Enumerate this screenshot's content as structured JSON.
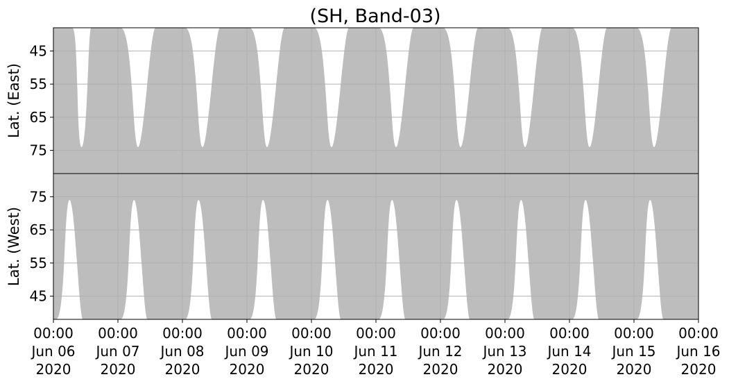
{
  "chart_data": {
    "type": "area",
    "title": "(SH, Band-03)",
    "colors": {
      "coverage": "#bdbdbd",
      "grid": "#b0b0b0",
      "background": "#ffffff",
      "axes": "#000000"
    },
    "grid": true,
    "x_axis": {
      "range": [
        "2020-06-06 00:00",
        "2020-06-16 00:00"
      ],
      "ticks": [
        {
          "time": "00:00",
          "date": "Jun 06",
          "year": "2020"
        },
        {
          "time": "00:00",
          "date": "Jun 07",
          "year": "2020"
        },
        {
          "time": "00:00",
          "date": "Jun 08",
          "year": "2020"
        },
        {
          "time": "00:00",
          "date": "Jun 09",
          "year": "2020"
        },
        {
          "time": "00:00",
          "date": "Jun 10",
          "year": "2020"
        },
        {
          "time": "00:00",
          "date": "Jun 11",
          "year": "2020"
        },
        {
          "time": "00:00",
          "date": "Jun 12",
          "year": "2020"
        },
        {
          "time": "00:00",
          "date": "Jun 13",
          "year": "2020"
        },
        {
          "time": "00:00",
          "date": "Jun 14",
          "year": "2020"
        },
        {
          "time": "00:00",
          "date": "Jun 15",
          "year": "2020"
        },
        {
          "time": "00:00",
          "date": "Jun 16",
          "year": "2020"
        }
      ]
    },
    "panels": [
      {
        "name": "east",
        "ylabel": "Lat. (East)",
        "ylim": [
          38,
          82
        ],
        "inverted": true,
        "yticks": [
          45,
          55,
          65,
          75
        ],
        "white_gaps": [
          {
            "start": "2020-06-06 07:00",
            "end": "2020-06-06 14:00",
            "floor": 74
          },
          {
            "start": "2020-06-07 01:00",
            "end": "2020-06-07 14:00",
            "floor": 74
          },
          {
            "start": "2020-06-08 01:00",
            "end": "2020-06-08 14:00",
            "floor": 74
          },
          {
            "start": "2020-06-09 01:00",
            "end": "2020-06-09 14:00",
            "floor": 74
          },
          {
            "start": "2020-06-10 01:00",
            "end": "2020-06-10 14:00",
            "floor": 74
          },
          {
            "start": "2020-06-11 01:00",
            "end": "2020-06-11 14:00",
            "floor": 74
          },
          {
            "start": "2020-06-12 01:00",
            "end": "2020-06-12 14:00",
            "floor": 74
          },
          {
            "start": "2020-06-13 01:00",
            "end": "2020-06-13 14:00",
            "floor": 74
          },
          {
            "start": "2020-06-14 01:00",
            "end": "2020-06-14 14:00",
            "floor": 74
          },
          {
            "start": "2020-06-15 01:00",
            "end": "2020-06-15 14:00",
            "floor": 74
          },
          {
            "start": "2020-06-16 00:00",
            "end": "2020-06-16 00:00",
            "floor": 74
          }
        ]
      },
      {
        "name": "west",
        "ylabel": "Lat. (West)",
        "ylim": [
          38,
          82
        ],
        "inverted": false,
        "yticks": [
          75,
          65,
          55,
          45
        ],
        "white_gaps": [
          {
            "start": "2020-06-06 01:00",
            "end": "2020-06-06 11:00",
            "floor": 74
          },
          {
            "start": "2020-06-07 01:00",
            "end": "2020-06-07 11:00",
            "floor": 74
          },
          {
            "start": "2020-06-08 01:00",
            "end": "2020-06-08 11:00",
            "floor": 74
          },
          {
            "start": "2020-06-09 01:00",
            "end": "2020-06-09 11:00",
            "floor": 74
          },
          {
            "start": "2020-06-10 01:00",
            "end": "2020-06-10 11:00",
            "floor": 74
          },
          {
            "start": "2020-06-11 01:00",
            "end": "2020-06-11 11:00",
            "floor": 74
          },
          {
            "start": "2020-06-12 01:00",
            "end": "2020-06-12 11:00",
            "floor": 74
          },
          {
            "start": "2020-06-13 01:00",
            "end": "2020-06-13 11:00",
            "floor": 74
          },
          {
            "start": "2020-06-14 01:00",
            "end": "2020-06-14 11:00",
            "floor": 74
          },
          {
            "start": "2020-06-15 01:00",
            "end": "2020-06-15 11:00",
            "floor": 74
          }
        ]
      }
    ]
  }
}
